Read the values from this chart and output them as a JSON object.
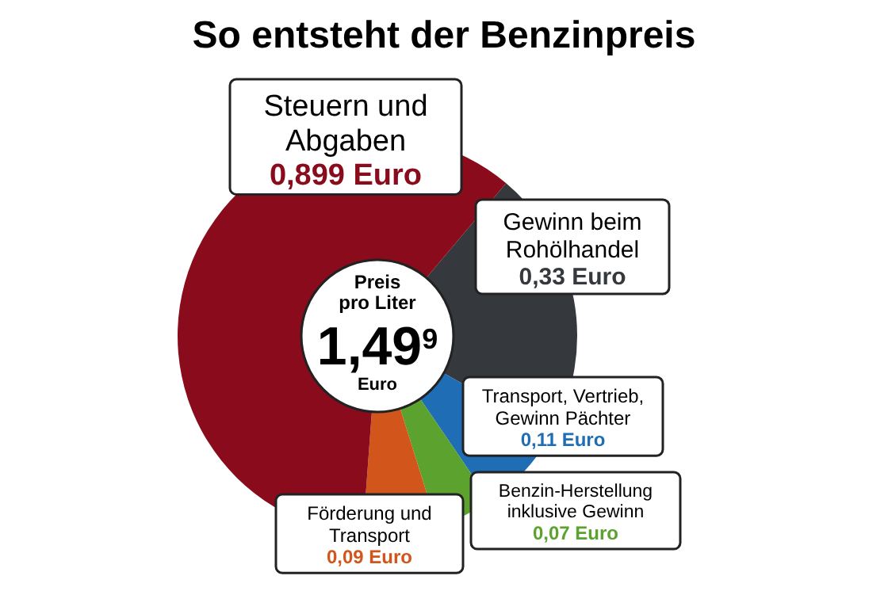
{
  "chart_data": {
    "type": "donut",
    "title": "So entsteht der Benzinpreis",
    "categories": [
      "Gewinn beim Rohölhandel",
      "Transport, Vertrieb, Gewinn Pächter",
      "Benzin-Herstellung inklusive Gewinn",
      "Förderung und Transport",
      "Steuern und Abgaben"
    ],
    "values": [
      0.33,
      0.11,
      0.07,
      0.09,
      0.899
    ],
    "value_labels": [
      "0,33 Euro",
      "0,11 Euro",
      "0,07 Euro",
      "0,09 Euro",
      "0,899 Euro"
    ],
    "colors": [
      "#35383d",
      "#1f6db5",
      "#5ba22e",
      "#d2561b",
      "#8a0b1c"
    ],
    "annotations": [
      "Preis pro Liter",
      "1,49$^{9}$ Euro"
    ]
  }
}
